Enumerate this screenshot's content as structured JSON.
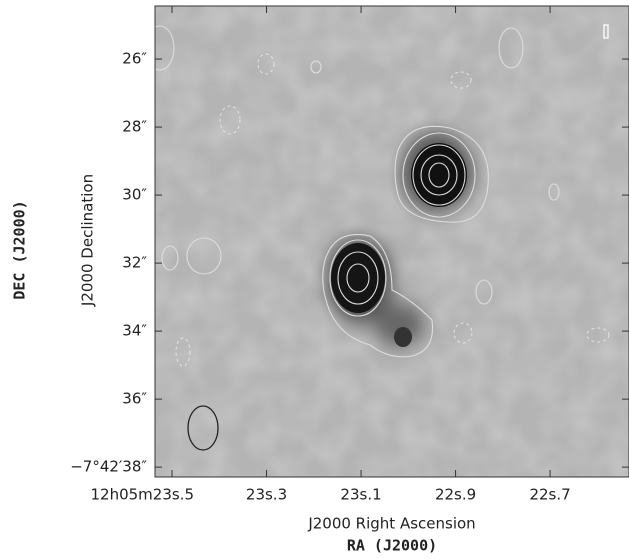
{
  "chart_data": {
    "type": "image",
    "x_label": "J2000 Right Ascension",
    "y_label": "J2000 Declination",
    "x_frame_label": "RA (J2000)",
    "y_frame_label": "DEC (J2000)",
    "xlim": [
      23.536,
      22.533
    ],
    "ylim": [
      24.44,
      38.29
    ],
    "xticks": [
      {
        "value": 23.5,
        "label": "12h05m23s.5"
      },
      {
        "value": 23.3,
        "label": "23s.3"
      },
      {
        "value": 23.1,
        "label": "23s.1"
      },
      {
        "value": 22.9,
        "label": "22s.9"
      },
      {
        "value": 22.7,
        "label": "22s.7"
      }
    ],
    "yticks": [
      {
        "value": 26,
        "label": "26″"
      },
      {
        "value": 28,
        "label": "28″"
      },
      {
        "value": 30,
        "label": "30″"
      },
      {
        "value": 32,
        "label": "32″"
      },
      {
        "value": 34,
        "label": "34″"
      },
      {
        "value": 36,
        "label": "36″"
      },
      {
        "value": 38,
        "label": "−7°42′38″"
      }
    ]
  }
}
